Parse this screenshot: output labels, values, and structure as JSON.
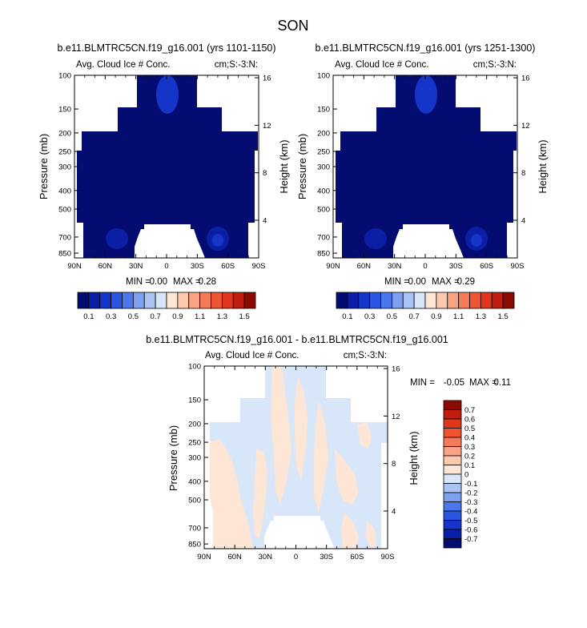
{
  "chart_data": {
    "title": "SON",
    "panels": [
      {
        "id": "left",
        "type": "heatmap",
        "title": "b.e11.BLMTRC5CN.f19_g16.001 (yrs 1101-1150)",
        "left_string": "Avg. Cloud Ice # Conc.",
        "right_string": "cm;S:-3:N:",
        "ylabel": "Pressure (mb)",
        "y2label": "Height (km)",
        "x_ticks": [
          "90N",
          "60N",
          "30N",
          "0",
          "30S",
          "60S",
          "90S"
        ],
        "y_ticks": [
          "100",
          "150",
          "200",
          "250",
          "300",
          "400",
          "500",
          "700",
          "850"
        ],
        "y2_ticks": [
          "16",
          "12",
          "8",
          "4"
        ],
        "xlim": [
          90,
          -90
        ],
        "ylim": [
          100,
          900
        ],
        "min_label": "MIN =",
        "min_value": "0.00",
        "max_label": "MAX =",
        "max_value": "0.28",
        "value_min": 0.0,
        "value_max": 0.28,
        "cells": [
          {
            "lat": [
              45,
              5
            ],
            "p": [
              100,
              150
            ],
            "value": 0.1
          },
          {
            "lat": [
              5,
              -20
            ],
            "p": [
              100,
              150
            ],
            "value": 0.1
          },
          {
            "lat": [
              55,
              -55
            ],
            "p": [
              150,
              200
            ],
            "value": 0.1
          },
          {
            "lat": [
              90,
              -90
            ],
            "p": [
              200,
              250
            ],
            "value": 0.1
          },
          {
            "lat": [
              90,
              -90
            ],
            "p": [
              250,
              600
            ],
            "value": 0.1
          }
        ],
        "features": [
          {
            "lat": 5,
            "p": 130,
            "value": 0.28
          },
          {
            "lat": 55,
            "p": 720,
            "value": 0.2
          },
          {
            "lat": -50,
            "p": 720,
            "value": 0.24
          }
        ]
      },
      {
        "id": "right",
        "type": "heatmap",
        "title": "b.e11.BLMTRC5CN.f19_g16.001 (yrs 1251-1300)",
        "left_string": "Avg. Cloud Ice # Conc.",
        "right_string": "cm;S:-3:N:",
        "ylabel": "Pressure (mb)",
        "y2label": "Height (km)",
        "x_ticks": [
          "90N",
          "60N",
          "30N",
          "0",
          "30S",
          "60S",
          "90S"
        ],
        "y_ticks": [
          "100",
          "150",
          "200",
          "250",
          "300",
          "400",
          "500",
          "700",
          "850"
        ],
        "y2_ticks": [
          "16",
          "12",
          "8",
          "4"
        ],
        "xlim": [
          90,
          -90
        ],
        "ylim": [
          100,
          900
        ],
        "min_label": "MIN =",
        "min_value": "0.00",
        "max_label": "MAX =",
        "max_value": "0.29",
        "value_min": 0.0,
        "value_max": 0.29,
        "features": [
          {
            "lat": 5,
            "p": 130,
            "value": 0.29
          },
          {
            "lat": 55,
            "p": 720,
            "value": 0.2
          },
          {
            "lat": -50,
            "p": 720,
            "value": 0.25
          }
        ]
      },
      {
        "id": "diff",
        "type": "heatmap",
        "title": "b.e11.BLMTRC5CN.f19_g16.001 - b.e11.BLMTRC5CN.f19_g16.001",
        "left_string": "Avg. Cloud Ice # Conc.",
        "right_string": "cm;S:-3:N:",
        "ylabel": "Pressure (mb)",
        "y2label": "Height (km)",
        "x_ticks": [
          "90N",
          "60N",
          "30N",
          "0",
          "30S",
          "60S",
          "90S"
        ],
        "y_ticks": [
          "100",
          "150",
          "200",
          "250",
          "300",
          "400",
          "500",
          "700",
          "850"
        ],
        "y2_ticks": [
          "16",
          "12",
          "8",
          "4"
        ],
        "xlim": [
          90,
          -90
        ],
        "ylim": [
          100,
          900
        ],
        "min_label": "MIN =",
        "min_value": "-0.05",
        "max_label": "MAX =",
        "max_value": "0.11",
        "value_min": -0.05,
        "value_max": 0.11
      }
    ],
    "colorbar_main": {
      "orientation": "horizontal",
      "levels": [
        0.1,
        0.2,
        0.3,
        0.4,
        0.5,
        0.6,
        0.7,
        0.8,
        0.9,
        1.0,
        1.1,
        1.2,
        1.3,
        1.4,
        1.5
      ],
      "labels": [
        "0.1",
        "0.3",
        "0.5",
        "0.7",
        "0.9",
        "1.1",
        "1.3",
        "1.5"
      ],
      "colors": [
        "#040c72",
        "#0a1fa6",
        "#1435c8",
        "#2a55e0",
        "#4a78ec",
        "#7ea0f0",
        "#aac4f4",
        "#d8e6fa",
        "#fde6d6",
        "#fcc8ae",
        "#f9a284",
        "#f57a58",
        "#ee5530",
        "#e0361c",
        "#c01e0e",
        "#8c0a04"
      ]
    },
    "colorbar_diff": {
      "orientation": "vertical",
      "levels": [
        -0.7,
        -0.6,
        -0.5,
        -0.4,
        -0.3,
        -0.2,
        -0.1,
        0,
        0.1,
        0.2,
        0.3,
        0.4,
        0.5,
        0.6,
        0.7
      ],
      "labels": [
        "0.7",
        "0.6",
        "0.5",
        "0.4",
        "0.3",
        "0.2",
        "0.1",
        "0",
        "-0.1",
        "-0.2",
        "-0.3",
        "-0.4",
        "-0.5",
        "-0.6",
        "-0.7"
      ],
      "colors_top_to_bottom": [
        "#8c0a04",
        "#c01e0e",
        "#e0361c",
        "#ee5530",
        "#f57a58",
        "#f9a284",
        "#fcc8ae",
        "#fde6d6",
        "#d8e6fa",
        "#aac4f4",
        "#7ea0f0",
        "#4a78ec",
        "#2a55e0",
        "#1435c8",
        "#0a1fa6",
        "#040c72"
      ]
    }
  }
}
